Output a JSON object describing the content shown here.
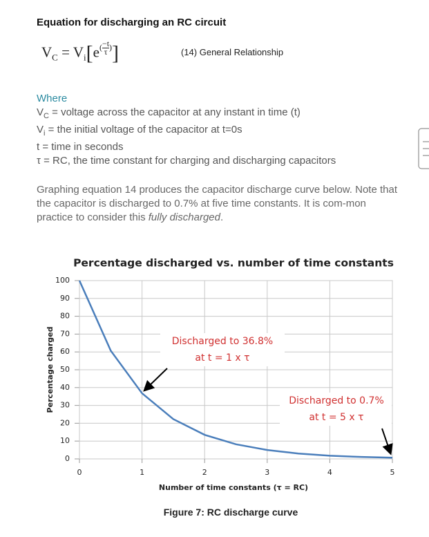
{
  "header": {
    "title": "Equation for discharging an RC circuit"
  },
  "equation": {
    "lhs": "V",
    "lhs_sub": "C",
    "eq": "=",
    "rhs": "V",
    "rhs_sub": "i",
    "base": "e",
    "num": "−t",
    "den": "τ",
    "label": "(14) General Relationship"
  },
  "where": {
    "heading": "Where",
    "items": [
      {
        "symbol": "V",
        "sub": "C",
        "text": " = voltage across the capacitor at any instant in time (t)"
      },
      {
        "symbol": "V",
        "sub": "i",
        "text": " = the initial voltage of the capacitor at t=0s"
      },
      {
        "symbol": "t",
        "text": " = time in seconds"
      },
      {
        "symbol": "τ",
        "text": " = RC, the time constant for charging and discharging capacitors"
      }
    ]
  },
  "paragraph": {
    "text": "Graphing equation 14 produces the capacitor discharge curve below. Note that the capacitor is discharged to 0.7% at five time constants. It is com-mon practice to consider this ",
    "italic": "fully discharged",
    "end": "."
  },
  "chart_data": {
    "type": "line",
    "title": "Percentage discharged vs. number of time constants",
    "x_label": "Number of time constants (τ = RC)",
    "y_label": "Percentage charged",
    "x": [
      0,
      0.5,
      1,
      1.5,
      2,
      2.5,
      3,
      3.5,
      4,
      4.5,
      5
    ],
    "series": [
      {
        "color": "#4a7ebb",
        "values": [
          100,
          60.7,
          36.8,
          22.3,
          13.5,
          8.2,
          5.0,
          3.0,
          1.8,
          1.1,
          0.7
        ]
      }
    ],
    "xlim": [
      0,
      5
    ],
    "ylim": [
      0,
      100
    ],
    "xticks": [
      0,
      1,
      2,
      3,
      4,
      5
    ],
    "yticks": [
      0,
      10,
      20,
      30,
      40,
      50,
      60,
      70,
      80,
      90,
      100
    ],
    "grid": true,
    "annotations": [
      {
        "lines": [
          "Discharged to 36.8%",
          "at t = 1 x τ"
        ]
      },
      {
        "lines": [
          "Discharged to 0.7%",
          "at t = 5 x τ"
        ]
      }
    ]
  },
  "caption": "Figure 7: RC discharge curve"
}
